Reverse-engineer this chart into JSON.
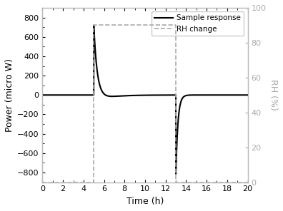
{
  "title": "",
  "xlabel": "Time (h)",
  "ylabel_left": "Power (micro W)",
  "ylabel_right": "RH (%)",
  "xlim": [
    0,
    20
  ],
  "ylim_left": [
    -900,
    900
  ],
  "ylim_right": [
    0,
    100
  ],
  "yticks_left": [
    -800,
    -600,
    -400,
    -200,
    0,
    200,
    400,
    600,
    800
  ],
  "yticks_right": [
    0,
    20,
    40,
    60,
    80,
    100
  ],
  "xticks": [
    0,
    2,
    4,
    6,
    8,
    10,
    12,
    14,
    16,
    18,
    20
  ],
  "rh_step_up_time": 5.0,
  "rh_step_down_time": 13.0,
  "rh_low": 0,
  "rh_high": 90,
  "line_color_sample": "#000000",
  "line_color_rh": "#aaaaaa",
  "background_color": "#ffffff",
  "label_sample": "Sample response",
  "label_rh": "RH change",
  "t_wet": 5.0,
  "t_dry": 13.0,
  "wet_peak": 720,
  "wet_tau": 0.35,
  "wet_undershoot": -60,
  "wet_undershoot_tau": 1.5,
  "dry_trough": -820,
  "dry_tau": 0.2,
  "baseline": 0.0
}
